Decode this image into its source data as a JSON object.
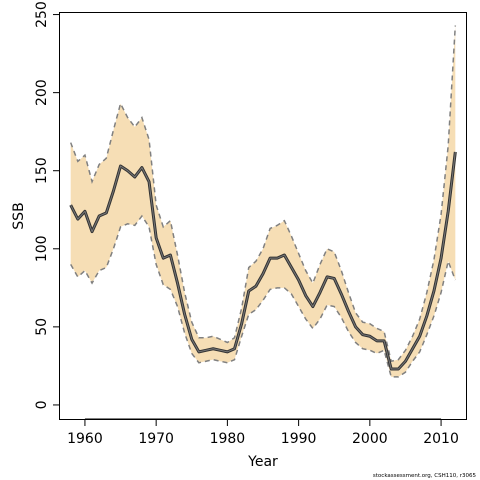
{
  "chart_data": {
    "type": "line",
    "xlabel": "Year",
    "ylabel": "SSB",
    "xlim": [
      1956.5,
      2013.5
    ],
    "ylim": [
      -9,
      251
    ],
    "x_ticks": [
      1960,
      1970,
      1980,
      1990,
      2000,
      2010
    ],
    "y_ticks": [
      0,
      50,
      100,
      150,
      200,
      250
    ],
    "grid": false,
    "legend": "none",
    "credit": "stockassessment.org, CSH110, r3065",
    "colors": {
      "band_fill": "#F6DEB5",
      "bound_line": "#808080",
      "estimate_line": "#333333",
      "estimate_inner": "#777777"
    },
    "x": [
      1958,
      1959,
      1960,
      1961,
      1962,
      1963,
      1964,
      1965,
      1966,
      1967,
      1968,
      1969,
      1970,
      1971,
      1972,
      1973,
      1974,
      1975,
      1976,
      1977,
      1978,
      1979,
      1980,
      1981,
      1982,
      1983,
      1984,
      1985,
      1986,
      1987,
      1988,
      1989,
      1990,
      1991,
      1992,
      1993,
      1994,
      1995,
      1996,
      1997,
      1998,
      1999,
      2000,
      2001,
      2002,
      2003,
      2004,
      2005,
      2006,
      2007,
      2008,
      2009,
      2010,
      2011,
      2012
    ],
    "series": [
      {
        "role": "estimate",
        "values": [
          128,
          119,
          124,
          111,
          121,
          123,
          137,
          153,
          150,
          146,
          152,
          143,
          107,
          94,
          96,
          78,
          58,
          42,
          34,
          35,
          36,
          35,
          34,
          36,
          52,
          73,
          76,
          84,
          94,
          94,
          96,
          88,
          80,
          70,
          63,
          72,
          82,
          81,
          71,
          60,
          50,
          45,
          44,
          41,
          41,
          23,
          23,
          28,
          36,
          44,
          57,
          73,
          94,
          124,
          162
        ]
      },
      {
        "role": "upper",
        "values": [
          168,
          156,
          160,
          143,
          154,
          158,
          176,
          193,
          184,
          178,
          184,
          170,
          128,
          114,
          118,
          96,
          72,
          53,
          43,
          43,
          44,
          42,
          40,
          43,
          62,
          88,
          92,
          100,
          113,
          115,
          118,
          108,
          97,
          86,
          78,
          90,
          100,
          98,
          86,
          72,
          59,
          53,
          52,
          49,
          47,
          28,
          29,
          35,
          44,
          55,
          72,
          93,
          122,
          166,
          243
        ]
      },
      {
        "role": "lower",
        "values": [
          90,
          82,
          86,
          78,
          86,
          88,
          100,
          114,
          116,
          115,
          121,
          114,
          90,
          77,
          74,
          63,
          46,
          33,
          27,
          28,
          29,
          28,
          27,
          29,
          44,
          58,
          61,
          67,
          74,
          75,
          75,
          71,
          63,
          55,
          49,
          55,
          64,
          63,
          56,
          47,
          40,
          36,
          35,
          33,
          35,
          18,
          18,
          21,
          28,
          34,
          45,
          57,
          72,
          92,
          80
        ]
      }
    ]
  }
}
